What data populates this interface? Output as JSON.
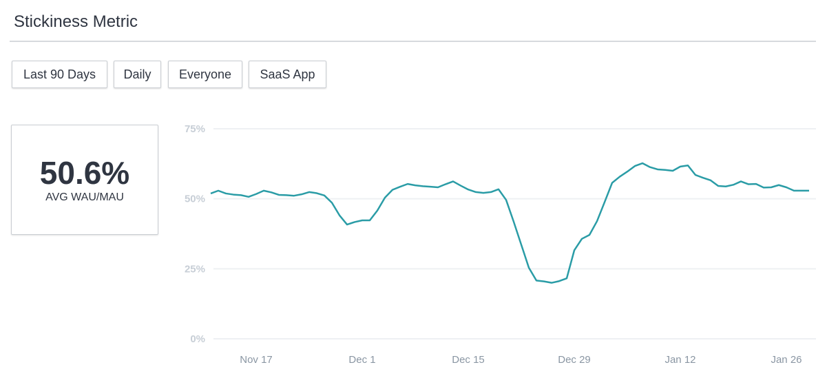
{
  "header": {
    "title": "Stickiness Metric"
  },
  "filters": [
    "Last 90 Days",
    "Daily",
    "Everyone",
    "SaaS App"
  ],
  "summary": {
    "value": "50.6%",
    "label": "AVG WAU/MAU"
  },
  "chart_data": {
    "type": "line",
    "categories": [
      null,
      null,
      null,
      null,
      null,
      null,
      "Nov 17",
      null,
      null,
      null,
      null,
      null,
      null,
      null,
      null,
      null,
      null,
      null,
      null,
      null,
      "Dec 1",
      null,
      null,
      null,
      null,
      null,
      null,
      null,
      null,
      null,
      null,
      null,
      null,
      null,
      "Dec 15",
      null,
      null,
      null,
      null,
      null,
      null,
      null,
      null,
      null,
      null,
      null,
      null,
      null,
      "Dec 29",
      null,
      null,
      null,
      null,
      null,
      null,
      null,
      null,
      null,
      null,
      null,
      null,
      null,
      "Jan 12",
      null,
      null,
      null,
      null,
      null,
      null,
      null,
      null,
      null,
      null,
      null,
      null,
      null,
      "Jan 26",
      null,
      null,
      null
    ],
    "series": [
      {
        "color": "#2a9ca6",
        "values": [
          51.9,
          52.9,
          51.9,
          51.5,
          51.3,
          50.7,
          51.7,
          52.9,
          52.3,
          51.4,
          51.3,
          51.1,
          51.6,
          52.4,
          52.0,
          51.2,
          48.6,
          44.1,
          40.8,
          41.7,
          42.3,
          42.3,
          45.8,
          50.4,
          53.2,
          54.3,
          55.3,
          54.8,
          54.5,
          54.3,
          54.1,
          55.2,
          56.2,
          54.7,
          53.3,
          52.4,
          52.1,
          52.4,
          53.4,
          49.6,
          41.8,
          33.6,
          25.4,
          20.8,
          20.5,
          20.0,
          20.6,
          21.6,
          31.6,
          35.7,
          37.1,
          42.0,
          48.8,
          55.7,
          57.9,
          59.7,
          61.7,
          62.7,
          61.3,
          60.5,
          60.3,
          60.0,
          61.5,
          61.9,
          58.5,
          57.5,
          56.6,
          54.6,
          54.4,
          55.0,
          56.2,
          55.2,
          55.3,
          54.0,
          54.1,
          54.9,
          54.1,
          52.9,
          52.9,
          52.9
        ]
      }
    ],
    "ylim": [
      0,
      75
    ],
    "yticks": [
      {
        "value": 0,
        "label": "0%"
      },
      {
        "value": 25,
        "label": "25%"
      },
      {
        "value": 50,
        "label": "50%"
      },
      {
        "value": 75,
        "label": "75%"
      }
    ],
    "grid": true
  }
}
